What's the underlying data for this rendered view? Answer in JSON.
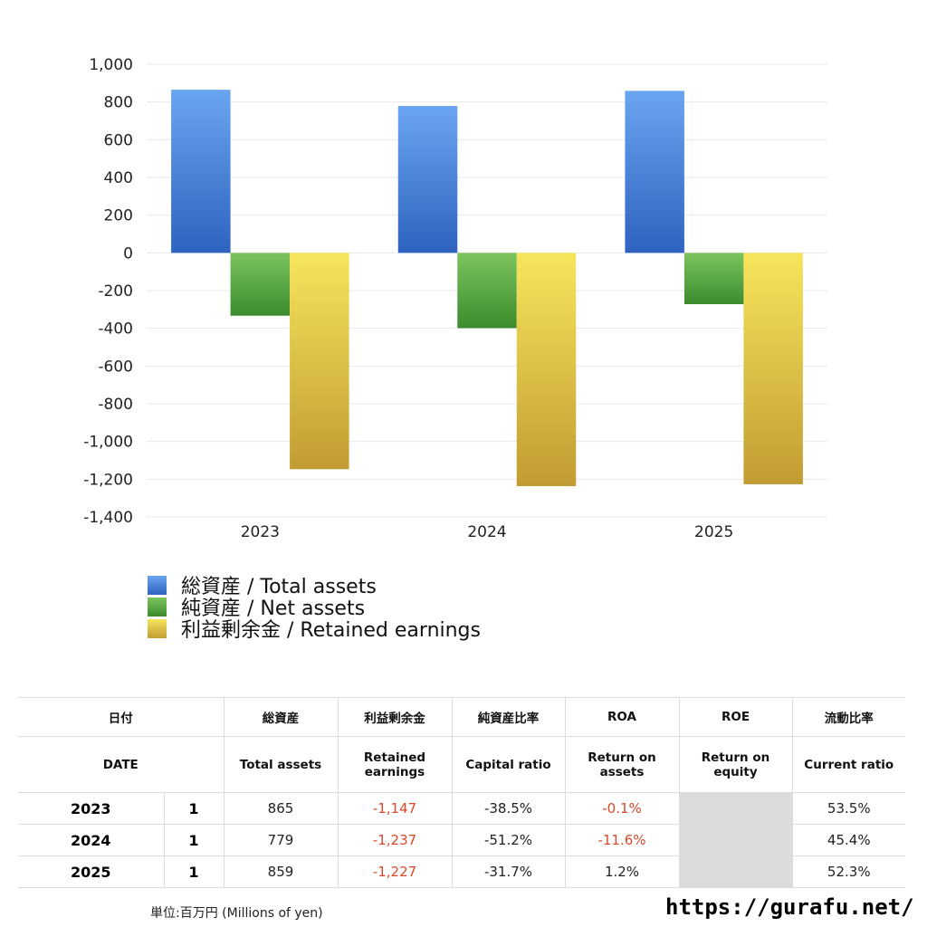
{
  "chart_data": {
    "type": "bar",
    "categories": [
      "2023",
      "2024",
      "2025"
    ],
    "series": [
      {
        "name": "総資産 / Total assets",
        "values": [
          865,
          779,
          859
        ],
        "color_top": "#6aa5f0",
        "color_bottom": "#2e63c0"
      },
      {
        "name": "純資産 / Net assets",
        "values": [
          -333,
          -399,
          -272
        ],
        "color_top": "#7cc45e",
        "color_bottom": "#3b8c2d"
      },
      {
        "name": "利益剰余金 / Retained earnings",
        "values": [
          -1147,
          -1237,
          -1227
        ],
        "color_top": "#f7e55c",
        "color_bottom": "#c29c33"
      }
    ],
    "ylim": [
      -1400,
      1000
    ],
    "yticks": [
      1000,
      800,
      600,
      400,
      200,
      0,
      -200,
      -400,
      -600,
      -800,
      -1000,
      -1200,
      -1400
    ],
    "ytick_labels": [
      "1,000",
      "800",
      "600",
      "400",
      "200",
      "0",
      "-200",
      "-400",
      "-600",
      "-800",
      "-1,000",
      "-1,200",
      "-1,400"
    ],
    "grid": true,
    "legend_position": "bottom-left"
  },
  "table": {
    "headers_jp": [
      "日付",
      "総資産",
      "利益剰余金",
      "純資産比率",
      "ROA",
      "ROE",
      "流動比率"
    ],
    "headers_en": [
      "DATE",
      "Total assets",
      "Retained earnings",
      "Capital ratio",
      "Return on assets",
      "Return on equity",
      "Current ratio"
    ],
    "rows": [
      {
        "year": "2023",
        "count": "1",
        "total_assets": "865",
        "retained": "-1,147",
        "capital_ratio": "-38.5%",
        "roa": "-0.1%",
        "roe": "",
        "current_ratio": "53.5%"
      },
      {
        "year": "2024",
        "count": "1",
        "total_assets": "779",
        "retained": "-1,237",
        "capital_ratio": "-51.2%",
        "roa": "-11.6%",
        "roe": "",
        "current_ratio": "45.4%"
      },
      {
        "year": "2025",
        "count": "1",
        "total_assets": "859",
        "retained": "-1,227",
        "capital_ratio": "-31.7%",
        "roa": "1.2%",
        "roe": "",
        "current_ratio": "52.3%"
      }
    ]
  },
  "colors": {
    "negative_text": "#d9482b",
    "blank_cell": "#dcdcdc"
  },
  "footer": {
    "unit_note": "単位:百万円 (Millions of yen)",
    "url": "https://gurafu.net/"
  }
}
